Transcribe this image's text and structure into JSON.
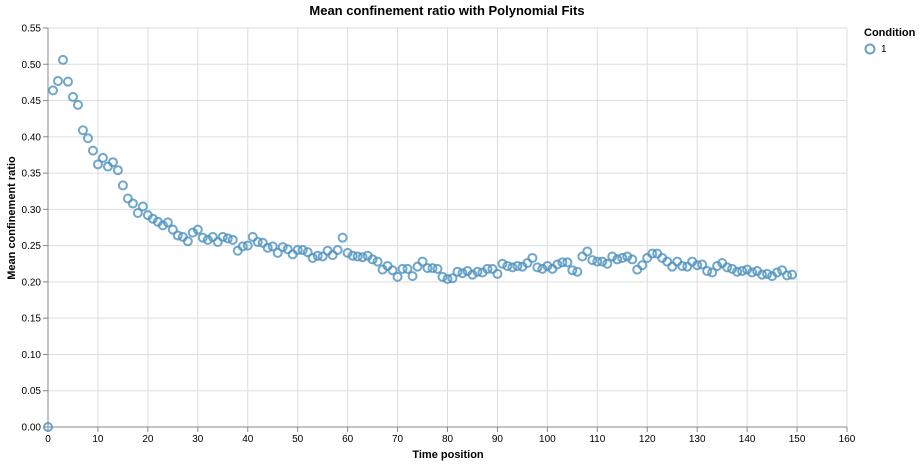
{
  "chart_data": {
    "type": "scatter",
    "title": "Mean confinement ratio with Polynomial Fits",
    "xlabel": "Time position",
    "ylabel": "Mean confinement ratio",
    "xlim": [
      0,
      160
    ],
    "ylim": [
      0,
      0.55
    ],
    "xticks": [
      0,
      10,
      20,
      30,
      40,
      50,
      60,
      70,
      80,
      90,
      100,
      110,
      120,
      130,
      140,
      150,
      160
    ],
    "yticks": [
      0.0,
      0.05,
      0.1,
      0.15,
      0.2,
      0.25,
      0.3,
      0.35,
      0.4,
      0.45,
      0.5,
      0.55
    ],
    "yticklabels": [
      "0.00",
      "0.05",
      "0.10",
      "0.15",
      "0.20",
      "0.25",
      "0.30",
      "0.35",
      "0.40",
      "0.45",
      "0.50",
      "0.55"
    ],
    "grid": true,
    "legend": {
      "title": "Condition",
      "position": "top-right",
      "entries": [
        "1"
      ]
    },
    "color": "#4c91bf",
    "series": [
      {
        "name": "1",
        "x": [
          0,
          1,
          2,
          3,
          4,
          5,
          6,
          7,
          8,
          9,
          10,
          11,
          12,
          13,
          14,
          15,
          16,
          17,
          18,
          19,
          20,
          21,
          22,
          23,
          24,
          25,
          26,
          27,
          28,
          29,
          30,
          31,
          32,
          33,
          34,
          35,
          36,
          37,
          38,
          39,
          40,
          41,
          42,
          43,
          44,
          45,
          46,
          47,
          48,
          49,
          50,
          51,
          52,
          53,
          54,
          55,
          56,
          57,
          58,
          59,
          60,
          61,
          62,
          63,
          64,
          65,
          66,
          67,
          68,
          69,
          70,
          71,
          72,
          73,
          74,
          75,
          76,
          77,
          78,
          79,
          80,
          81,
          82,
          83,
          84,
          85,
          86,
          87,
          88,
          89,
          90,
          91,
          92,
          93,
          94,
          95,
          96,
          97,
          98,
          99,
          100,
          101,
          102,
          103,
          104,
          105,
          106,
          107,
          108,
          109,
          110,
          111,
          112,
          113,
          114,
          115,
          116,
          117,
          118,
          119,
          120,
          121,
          122,
          123,
          124,
          125,
          126,
          127,
          128,
          129,
          130,
          131,
          132,
          133,
          134,
          135,
          136,
          137,
          138,
          139,
          140,
          141,
          142,
          143,
          144,
          145,
          146,
          147,
          148,
          149
        ],
        "y": [
          0.0,
          0.464,
          0.477,
          0.506,
          0.476,
          0.455,
          0.444,
          0.409,
          0.398,
          0.381,
          0.362,
          0.371,
          0.359,
          0.365,
          0.354,
          0.333,
          0.315,
          0.308,
          0.295,
          0.304,
          0.292,
          0.287,
          0.283,
          0.278,
          0.282,
          0.272,
          0.264,
          0.262,
          0.256,
          0.268,
          0.272,
          0.261,
          0.258,
          0.262,
          0.255,
          0.262,
          0.26,
          0.258,
          0.243,
          0.249,
          0.25,
          0.262,
          0.255,
          0.254,
          0.247,
          0.249,
          0.24,
          0.248,
          0.245,
          0.238,
          0.244,
          0.244,
          0.241,
          0.233,
          0.236,
          0.235,
          0.243,
          0.237,
          0.244,
          0.261,
          0.24,
          0.236,
          0.235,
          0.234,
          0.236,
          0.231,
          0.228,
          0.217,
          0.222,
          0.216,
          0.207,
          0.218,
          0.218,
          0.208,
          0.221,
          0.228,
          0.219,
          0.219,
          0.218,
          0.207,
          0.204,
          0.205,
          0.214,
          0.212,
          0.215,
          0.21,
          0.214,
          0.213,
          0.218,
          0.218,
          0.211,
          0.225,
          0.222,
          0.22,
          0.222,
          0.221,
          0.226,
          0.233,
          0.22,
          0.218,
          0.222,
          0.218,
          0.224,
          0.227,
          0.227,
          0.216,
          0.214,
          0.235,
          0.242,
          0.23,
          0.228,
          0.228,
          0.225,
          0.235,
          0.231,
          0.233,
          0.235,
          0.231,
          0.217,
          0.223,
          0.233,
          0.239,
          0.239,
          0.233,
          0.228,
          0.221,
          0.228,
          0.222,
          0.221,
          0.228,
          0.223,
          0.224,
          0.215,
          0.213,
          0.222,
          0.226,
          0.22,
          0.218,
          0.214,
          0.215,
          0.217,
          0.213,
          0.215,
          0.21,
          0.211,
          0.208,
          0.213,
          0.216,
          0.209,
          0.21
        ]
      }
    ]
  }
}
